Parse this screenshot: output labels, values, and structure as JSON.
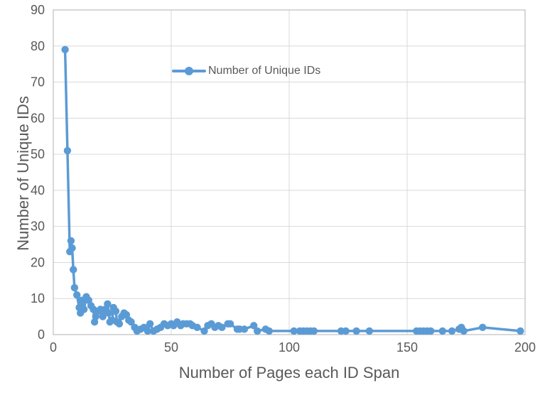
{
  "chart_data": {
    "type": "line",
    "xlabel": "Number of Pages each ID Span",
    "ylabel": "Number of Unique IDs",
    "xlim": [
      0,
      200
    ],
    "ylim": [
      0,
      90
    ],
    "xticks": [
      0,
      50,
      100,
      150,
      200
    ],
    "yticks": [
      0,
      10,
      20,
      30,
      40,
      50,
      60,
      70,
      80,
      90
    ],
    "grid": true,
    "grid_color": "#D9D9D9",
    "axis_color": "#BFBFBF",
    "tick_label_color": "#595959",
    "legend_position": "inside-top-center",
    "series": [
      {
        "name": "Number of Unique IDs",
        "color": "#5B9BD5",
        "marker": "circle",
        "points": [
          [
            5,
            79
          ],
          [
            6,
            51
          ],
          [
            7,
            23
          ],
          [
            7.5,
            26
          ],
          [
            8,
            24
          ],
          [
            8.5,
            18
          ],
          [
            9,
            13
          ],
          [
            10,
            11
          ],
          [
            11,
            7.5
          ],
          [
            11.5,
            6
          ],
          [
            12,
            9.5
          ],
          [
            13,
            7
          ],
          [
            14,
            10.5
          ],
          [
            15,
            9.5
          ],
          [
            16,
            8
          ],
          [
            17,
            7
          ],
          [
            17.5,
            3.5
          ],
          [
            18,
            5
          ],
          [
            19,
            6.5
          ],
          [
            20,
            7
          ],
          [
            21,
            5
          ],
          [
            22,
            7
          ],
          [
            23,
            8.5
          ],
          [
            23.5,
            6
          ],
          [
            24,
            3.5
          ],
          [
            25,
            4
          ],
          [
            25.5,
            7.5
          ],
          [
            26.5,
            6.5
          ],
          [
            27,
            3.5
          ],
          [
            28,
            3
          ],
          [
            29,
            5
          ],
          [
            30,
            6
          ],
          [
            31,
            5.5
          ],
          [
            32,
            4
          ],
          [
            33,
            3.5
          ],
          [
            34.5,
            2
          ],
          [
            35.5,
            1
          ],
          [
            37,
            1.5
          ],
          [
            38.5,
            2
          ],
          [
            40,
            1
          ],
          [
            41,
            3
          ],
          [
            42.5,
            1
          ],
          [
            44,
            1.5
          ],
          [
            45.5,
            2
          ],
          [
            47,
            3
          ],
          [
            48.5,
            2.5
          ],
          [
            50,
            3
          ],
          [
            51,
            2.5
          ],
          [
            52.5,
            3.5
          ],
          [
            54,
            2.5
          ],
          [
            55,
            3
          ],
          [
            56.5,
            3
          ],
          [
            58,
            3
          ],
          [
            59,
            2.5
          ],
          [
            61,
            2
          ],
          [
            64,
            1
          ],
          [
            65.5,
            2.5
          ],
          [
            67,
            3
          ],
          [
            68.5,
            2
          ],
          [
            70,
            2.5
          ],
          [
            71.5,
            2
          ],
          [
            74,
            3
          ],
          [
            75,
            3
          ],
          [
            78,
            1.5
          ],
          [
            79,
            1.5
          ],
          [
            81,
            1.5
          ],
          [
            85,
            2.5
          ],
          [
            86.5,
            1
          ],
          [
            90,
            1.5
          ],
          [
            91.5,
            1
          ],
          [
            102,
            1
          ],
          [
            104.5,
            1
          ],
          [
            106,
            1
          ],
          [
            107.5,
            1
          ],
          [
            109,
            1
          ],
          [
            110.5,
            1
          ],
          [
            122,
            1
          ],
          [
            124,
            1
          ],
          [
            128.5,
            1
          ],
          [
            134,
            1
          ],
          [
            154,
            1
          ],
          [
            155.5,
            1
          ],
          [
            157,
            1
          ],
          [
            158.5,
            1
          ],
          [
            160,
            1
          ],
          [
            165,
            1
          ],
          [
            169,
            1
          ],
          [
            172,
            1.5
          ],
          [
            173,
            2
          ],
          [
            174,
            1
          ],
          [
            182,
            2
          ],
          [
            198,
            1
          ]
        ]
      }
    ]
  }
}
